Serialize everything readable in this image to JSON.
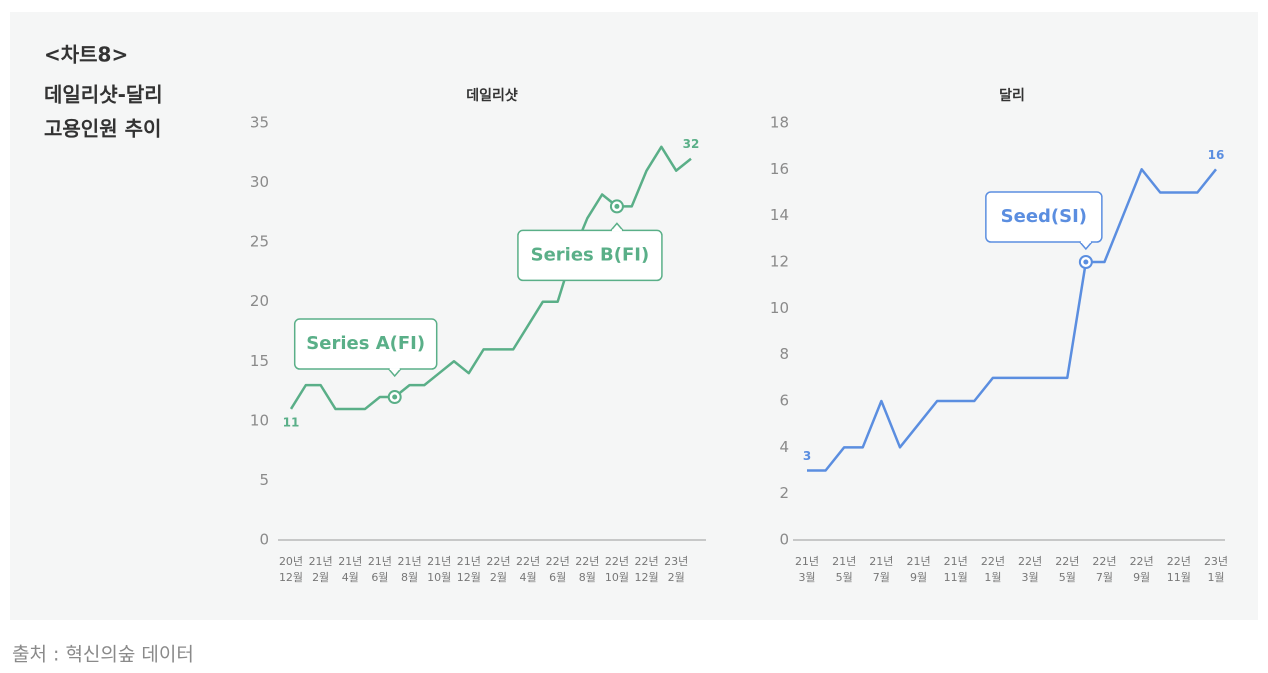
{
  "heading": [
    "<차트8>",
    "데일리샷-달리",
    "고용인원 추이"
  ],
  "source": "출처 : 혁신의숲 데이터",
  "chart_data": [
    {
      "type": "line",
      "title": "데일리샷",
      "color": "#5aaf88",
      "categories": [
        [
          "20년",
          "12월"
        ],
        null,
        [
          "21년",
          "2월"
        ],
        null,
        [
          "21년",
          "4월"
        ],
        null,
        [
          "21년",
          "6월"
        ],
        null,
        [
          "21년",
          "8월"
        ],
        null,
        [
          "21년",
          "10월"
        ],
        null,
        [
          "21년",
          "12월"
        ],
        null,
        [
          "22년",
          "2월"
        ],
        null,
        [
          "22년",
          "4월"
        ],
        null,
        [
          "22년",
          "6월"
        ],
        null,
        [
          "22년",
          "8월"
        ],
        null,
        [
          "22년",
          "10월"
        ],
        null,
        [
          "22년",
          "12월"
        ],
        null,
        [
          "23년",
          "2월"
        ],
        null
      ],
      "values": [
        11,
        13,
        13,
        11,
        11,
        11,
        12,
        12,
        13,
        13,
        14,
        15,
        14,
        16,
        16,
        16,
        18,
        20,
        20,
        24,
        27,
        29,
        28,
        28,
        31,
        33,
        31,
        32
      ],
      "ylim": [
        0,
        35
      ],
      "yticks": [
        0,
        5,
        10,
        15,
        20,
        25,
        30,
        35
      ],
      "annotations": [
        {
          "point": 7,
          "text": "Series A(FI)"
        },
        {
          "point": 22,
          "text": "Series B(FI)"
        }
      ]
    },
    {
      "type": "line",
      "title": "달리",
      "color": "#5b8ee0",
      "categories": [
        [
          "21년",
          "3월"
        ],
        null,
        [
          "21년",
          "5월"
        ],
        null,
        [
          "21년",
          "7월"
        ],
        null,
        [
          "21년",
          "9월"
        ],
        null,
        [
          "21년",
          "11월"
        ],
        null,
        [
          "22년",
          "1월"
        ],
        null,
        [
          "22년",
          "3월"
        ],
        null,
        [
          "22년",
          "5월"
        ],
        null,
        [
          "22년",
          "7월"
        ],
        null,
        [
          "22년",
          "9월"
        ],
        null,
        [
          "22년",
          "11월"
        ],
        null,
        [
          "23년",
          "1월"
        ]
      ],
      "values": [
        3,
        3,
        4,
        4,
        6,
        4,
        5,
        6,
        6,
        6,
        7,
        7,
        7,
        7,
        7,
        12,
        12,
        14,
        16,
        15,
        15,
        15,
        16
      ],
      "ylim": [
        0,
        18
      ],
      "yticks": [
        0,
        2,
        4,
        6,
        8,
        10,
        12,
        14,
        16,
        18
      ],
      "annotations": [
        {
          "point": 15,
          "text": "Seed(SI)"
        }
      ]
    }
  ]
}
